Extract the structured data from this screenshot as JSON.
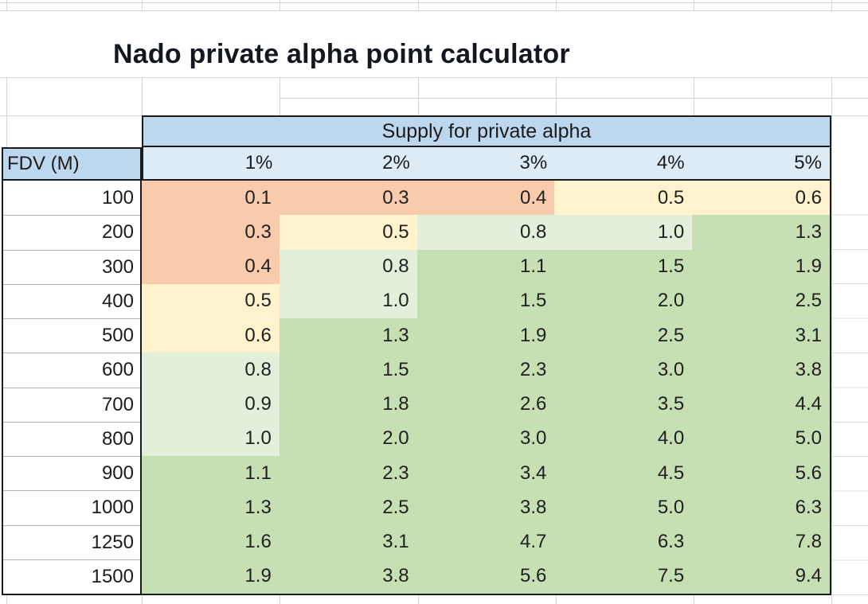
{
  "title": "Nado private alpha point calculator",
  "table": {
    "merged_header": "Supply for private alpha",
    "corner_label": "FDV (M)",
    "col_headers": [
      "1%",
      "2%",
      "3%",
      "4%",
      "5%"
    ],
    "rows": [
      {
        "fdv": "100",
        "values": [
          "0.1",
          "0.3",
          "0.4",
          "0.5",
          "0.6"
        ],
        "colors": [
          "salmon",
          "salmon",
          "salmon",
          "cream",
          "cream"
        ]
      },
      {
        "fdv": "200",
        "values": [
          "0.3",
          "0.5",
          "0.8",
          "1.0",
          "1.3"
        ],
        "colors": [
          "salmon",
          "cream",
          "palegreen",
          "palegreen",
          "green"
        ]
      },
      {
        "fdv": "300",
        "values": [
          "0.4",
          "0.8",
          "1.1",
          "1.5",
          "1.9"
        ],
        "colors": [
          "salmon",
          "palegreen",
          "green",
          "green",
          "green"
        ]
      },
      {
        "fdv": "400",
        "values": [
          "0.5",
          "1.0",
          "1.5",
          "2.0",
          "2.5"
        ],
        "colors": [
          "cream",
          "palegreen",
          "green",
          "green",
          "green"
        ]
      },
      {
        "fdv": "500",
        "values": [
          "0.6",
          "1.3",
          "1.9",
          "2.5",
          "3.1"
        ],
        "colors": [
          "cream",
          "green",
          "green",
          "green",
          "green"
        ]
      },
      {
        "fdv": "600",
        "values": [
          "0.8",
          "1.5",
          "2.3",
          "3.0",
          "3.8"
        ],
        "colors": [
          "palegreen",
          "green",
          "green",
          "green",
          "green"
        ]
      },
      {
        "fdv": "700",
        "values": [
          "0.9",
          "1.8",
          "2.6",
          "3.5",
          "4.4"
        ],
        "colors": [
          "palegreen",
          "green",
          "green",
          "green",
          "green"
        ]
      },
      {
        "fdv": "800",
        "values": [
          "1.0",
          "2.0",
          "3.0",
          "4.0",
          "5.0"
        ],
        "colors": [
          "palegreen",
          "green",
          "green",
          "green",
          "green"
        ]
      },
      {
        "fdv": "900",
        "values": [
          "1.1",
          "2.3",
          "3.4",
          "4.5",
          "5.6"
        ],
        "colors": [
          "green",
          "green",
          "green",
          "green",
          "green"
        ]
      },
      {
        "fdv": "1000",
        "values": [
          "1.3",
          "2.5",
          "3.8",
          "5.0",
          "6.3"
        ],
        "colors": [
          "green",
          "green",
          "green",
          "green",
          "green"
        ]
      },
      {
        "fdv": "1250",
        "values": [
          "1.6",
          "3.1",
          "4.7",
          "6.3",
          "7.8"
        ],
        "colors": [
          "green",
          "green",
          "green",
          "green",
          "green"
        ]
      },
      {
        "fdv": "1500",
        "values": [
          "1.9",
          "3.8",
          "5.6",
          "7.5",
          "9.4"
        ],
        "colors": [
          "green",
          "green",
          "green",
          "green",
          "green"
        ]
      }
    ]
  },
  "colors": {
    "salmon": "#F8CBAD",
    "cream": "#FFF2CC",
    "palegreen": "#E2EFDA",
    "green": "#C6E0B4",
    "header_blue": "#BDD7EE",
    "subheader_blue": "#DDEBF7",
    "gridline": "#D6D6D6",
    "border": "#1B1B1B"
  }
}
